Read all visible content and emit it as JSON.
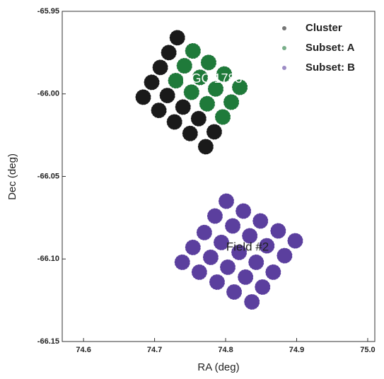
{
  "chart_data": {
    "type": "scatter",
    "x_label": "RA (deg)",
    "y_label": "Dec (deg)",
    "xlim": [
      74.57,
      75.01
    ],
    "ylim": [
      -66.15,
      -65.95
    ],
    "xticks": [
      74.6,
      74.7,
      74.8,
      74.9,
      {
        "value": 75,
        "label": "75.0"
      }
    ],
    "yticks": [
      -65.95,
      {
        "value": -66,
        "label": "-66.00"
      },
      -66.05,
      {
        "value": -66.1,
        "label": "-66.10"
      },
      -66.15
    ],
    "legend": "upper right",
    "annotations": [
      "NGC 1783",
      "Field #2"
    ],
    "series": [
      {
        "name": "Cluster",
        "color": "#1a1a1a",
        "x": [
          74.684,
          74.706,
          74.728,
          74.75,
          74.772,
          74.696,
          74.718,
          74.74,
          74.762,
          74.784,
          74.708,
          74.73,
          74.752,
          74.774,
          74.796,
          74.72,
          74.742,
          74.764,
          74.786,
          74.808,
          74.732,
          74.754,
          74.776,
          74.798,
          74.82
        ],
        "y": [
          -66.002,
          -66.01,
          -66.017,
          -66.024,
          -66.032,
          -65.993,
          -66.001,
          -66.008,
          -66.015,
          -66.023,
          -65.984,
          -65.992,
          -65.999,
          -66.006,
          -66.014,
          -65.975,
          -65.983,
          -65.99,
          -65.997,
          -66.005,
          -65.966,
          -65.974,
          -65.981,
          -65.988,
          -65.996
        ]
      },
      {
        "name": "Subset: A",
        "color": "#1f7a3a",
        "x": [
          74.73,
          74.752,
          74.774,
          74.796,
          74.742,
          74.764,
          74.786,
          74.808,
          74.754,
          74.776,
          74.798,
          74.82
        ],
        "y": [
          -65.992,
          -65.999,
          -66.006,
          -66.014,
          -65.983,
          -65.99,
          -65.997,
          -66.005,
          -65.974,
          -65.981,
          -65.988,
          -65.996
        ]
      },
      {
        "name": "Subset: B",
        "color": "#5b3f9e",
        "x": [
          74.739,
          74.763,
          74.788,
          74.812,
          74.837,
          74.754,
          74.779,
          74.803,
          74.828,
          74.852,
          74.77,
          74.794,
          74.819,
          74.843,
          74.867,
          74.785,
          74.81,
          74.834,
          74.858,
          74.883,
          74.801,
          74.825,
          74.849,
          74.874,
          74.898
        ],
        "y": [
          -66.102,
          -66.108,
          -66.114,
          -66.12,
          -66.126,
          -66.093,
          -66.099,
          -66.105,
          -66.111,
          -66.117,
          -66.084,
          -66.09,
          -66.096,
          -66.102,
          -66.108,
          -66.074,
          -66.08,
          -66.086,
          -66.092,
          -66.098,
          -66.065,
          -66.071,
          -66.077,
          -66.083,
          -66.089
        ]
      }
    ]
  }
}
